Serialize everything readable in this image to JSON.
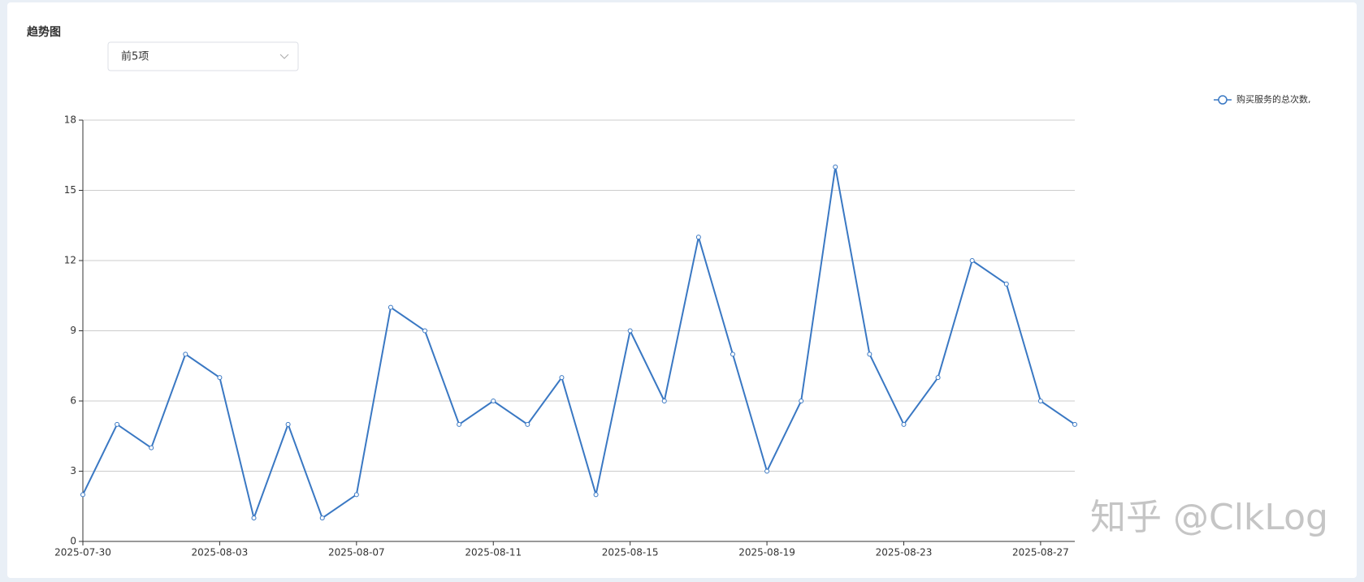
{
  "filter": {
    "selected": "前5项"
  },
  "watermark": "知乎 @ClkLog",
  "chart_data": {
    "type": "line",
    "title": "趋势图",
    "categories": [
      "2025-07-30",
      null,
      null,
      null,
      "2025-08-03",
      null,
      null,
      null,
      "2025-08-07",
      null,
      null,
      null,
      "2025-08-11",
      null,
      null,
      null,
      "2025-08-15",
      null,
      null,
      null,
      "2025-08-19",
      null,
      null,
      null,
      "2025-08-23",
      null,
      null,
      null,
      "2025-08-27",
      null
    ],
    "series": [
      {
        "name": "购买服务的总次数,",
        "color": "#3a78c3",
        "values": [
          2,
          5,
          4,
          8,
          7,
          1,
          5,
          1,
          2,
          10,
          9,
          5,
          6,
          5,
          7,
          2,
          9,
          6,
          13,
          8,
          3,
          6,
          16,
          8,
          5,
          7,
          12,
          11,
          6,
          5
        ]
      }
    ],
    "ylim": [
      0,
      18
    ],
    "yticks": [
      0,
      3,
      6,
      9,
      12,
      15,
      18
    ],
    "grid": true,
    "legend": "top-right"
  }
}
